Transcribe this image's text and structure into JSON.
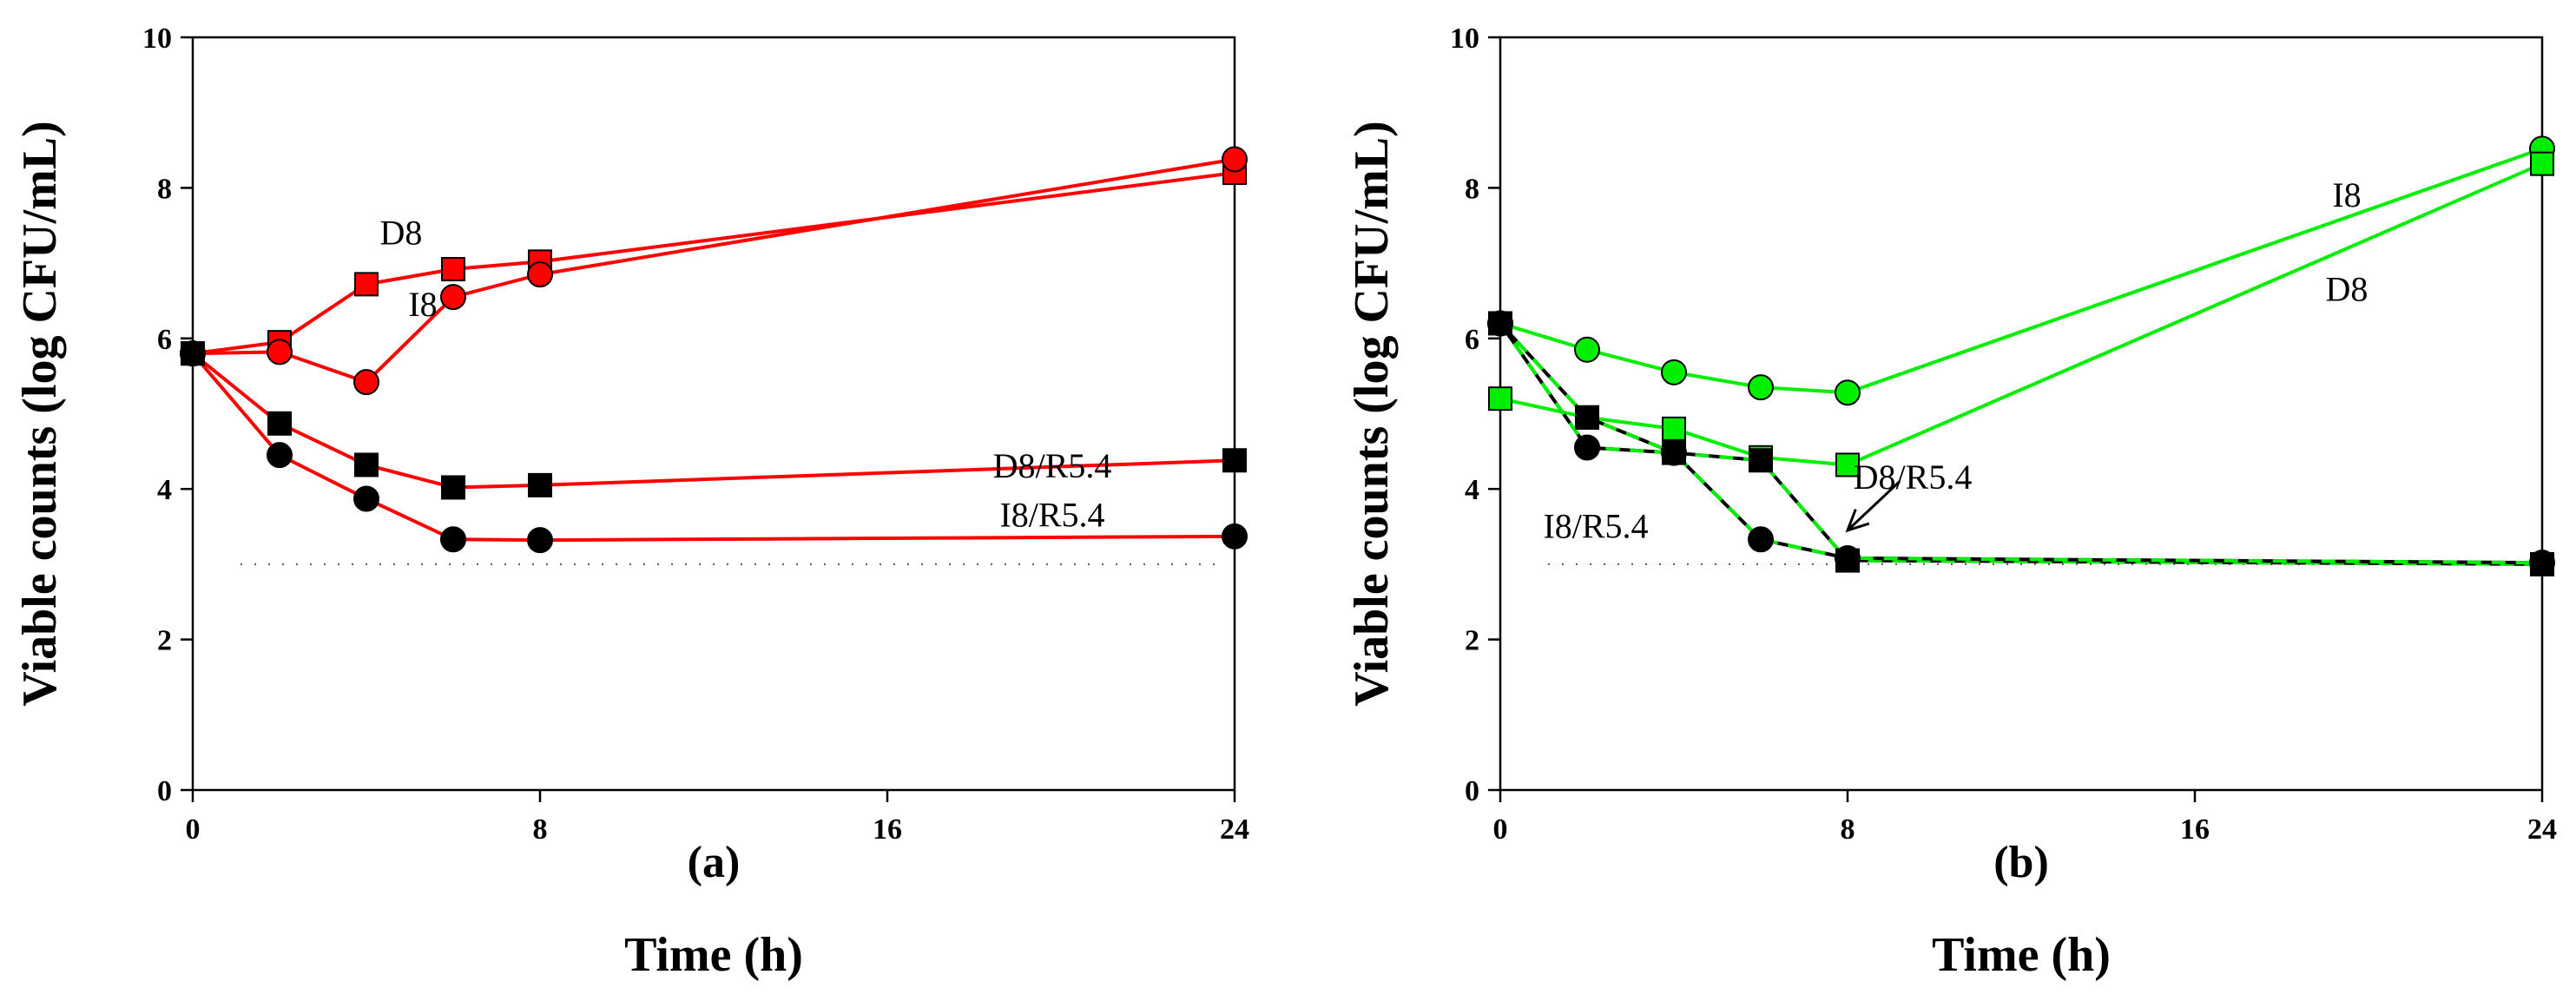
{
  "colors": {
    "red": "#ff0000",
    "green": "#00ee00",
    "black": "#000000",
    "marker_stroke": "#000000"
  },
  "chart_data": [
    {
      "type": "line",
      "panel_label": "(a)",
      "xlabel": "Time (h)",
      "ylabel": "Viable counts (log CFU/mL)",
      "xlim": [
        0,
        24
      ],
      "ylim": [
        0,
        10
      ],
      "xticks": [
        0,
        8,
        16,
        24
      ],
      "yticks": [
        0,
        2,
        4,
        6,
        8,
        10
      ],
      "reference_line": {
        "y": 3.0,
        "style": "dotted"
      },
      "series": [
        {
          "name": "D8",
          "label": "D8",
          "marker": "square",
          "fill": "#ff0000",
          "line": "#ff0000",
          "dash": false,
          "x": [
            0,
            2,
            4,
            6,
            8,
            24
          ],
          "values": [
            5.8,
            5.95,
            6.72,
            6.92,
            7.02,
            8.2
          ]
        },
        {
          "name": "I8",
          "label": "I8",
          "marker": "circle",
          "fill": "#ff0000",
          "line": "#ff0000",
          "dash": false,
          "x": [
            0,
            2,
            4,
            6,
            8,
            24
          ],
          "values": [
            5.8,
            5.82,
            5.42,
            6.55,
            6.85,
            8.38
          ]
        },
        {
          "name": "D8/R5.4",
          "label": "D8/R5.4",
          "marker": "square",
          "fill": "#000000",
          "line": "#ff0000",
          "dash": false,
          "x": [
            0,
            2,
            4,
            6,
            8,
            24
          ],
          "values": [
            5.8,
            4.87,
            4.32,
            4.02,
            4.05,
            4.38
          ]
        },
        {
          "name": "I8/R5.4",
          "label": "I8/R5.4",
          "marker": "circle",
          "fill": "#000000",
          "line": "#ff0000",
          "dash": false,
          "x": [
            0,
            2,
            4,
            6,
            8,
            24
          ],
          "values": [
            5.8,
            4.45,
            3.87,
            3.33,
            3.32,
            3.37
          ]
        }
      ],
      "annotations": [
        {
          "text": "D8",
          "x": 4.8,
          "y": 7.25
        },
        {
          "text": "I8",
          "x": 5.3,
          "y": 6.3
        },
        {
          "text": "D8/R5.4",
          "x": 19.8,
          "y": 4.15
        },
        {
          "text": "I8/R5.4",
          "x": 19.8,
          "y": 3.5
        }
      ]
    },
    {
      "type": "line",
      "panel_label": "(b)",
      "xlabel": "Time (h)",
      "ylabel": "Viable counts (log CFU/mL)",
      "xlim": [
        0,
        24
      ],
      "ylim": [
        0,
        10
      ],
      "xticks": [
        0,
        8,
        16,
        24
      ],
      "yticks": [
        0,
        2,
        4,
        6,
        8,
        10
      ],
      "reference_line": {
        "y": 3.0,
        "style": "dotted"
      },
      "series": [
        {
          "name": "I8",
          "label": "I8",
          "marker": "circle",
          "fill": "#00ee00",
          "line": "#00ee00",
          "dash": false,
          "x": [
            0,
            2,
            4,
            6,
            8,
            24
          ],
          "values": [
            6.2,
            5.85,
            5.55,
            5.35,
            5.28,
            8.52
          ]
        },
        {
          "name": "D8",
          "label": "D8",
          "marker": "square",
          "fill": "#00ee00",
          "line": "#00ee00",
          "dash": false,
          "x": [
            0,
            2,
            4,
            6,
            8,
            24
          ],
          "values": [
            5.2,
            4.95,
            4.8,
            4.42,
            4.32,
            8.32
          ]
        },
        {
          "name": "D8/R5.4",
          "label": "D8/R5.4",
          "marker": "square",
          "fill": "#000000",
          "line": "#00ee00",
          "dash": true,
          "x": [
            0,
            2,
            4,
            6,
            8,
            24
          ],
          "values": [
            6.2,
            4.95,
            4.48,
            4.38,
            3.05,
            3.0
          ]
        },
        {
          "name": "I8/R5.4",
          "label": "I8/R5.4",
          "marker": "circle",
          "fill": "#000000",
          "line": "#00ee00",
          "dash": true,
          "x": [
            0,
            2,
            4,
            6,
            8,
            24
          ],
          "values": [
            6.2,
            4.55,
            4.48,
            3.33,
            3.08,
            3.02
          ]
        }
      ],
      "annotations": [
        {
          "text": "I8",
          "x": 19.5,
          "y": 7.75
        },
        {
          "text": "D8",
          "x": 19.5,
          "y": 6.5
        },
        {
          "text": "D8/R5.4",
          "x": 9.5,
          "y": 4.0
        },
        {
          "text": "I8/R5.4",
          "x": 2.2,
          "y": 3.35
        }
      ],
      "arrow": {
        "from": {
          "x": 9.2,
          "y": 4.1
        },
        "to": {
          "x": 8.0,
          "y": 3.45
        }
      }
    }
  ]
}
